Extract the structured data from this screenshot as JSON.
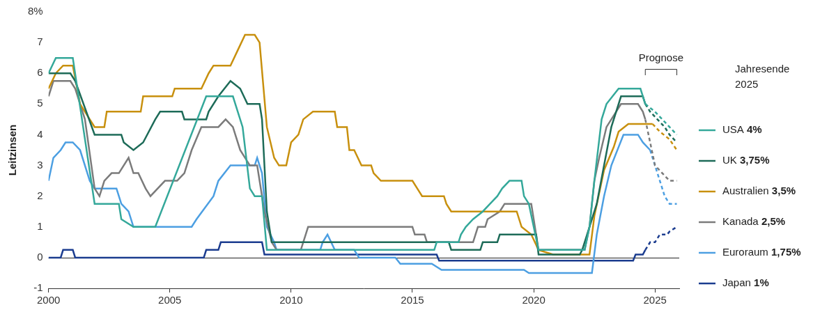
{
  "chart_data": {
    "type": "line",
    "y_label": "Leitzinsen",
    "xlim": [
      2000,
      2026
    ],
    "xticks": [
      2000,
      2005,
      2010,
      2015,
      2020,
      2025
    ],
    "ylim": [
      -1,
      8
    ],
    "yticks": [
      -1,
      0,
      1,
      2,
      3,
      4,
      5,
      6,
      7,
      {
        "value": 8,
        "label": "8%"
      }
    ],
    "grid": false,
    "legend": "right",
    "legend_title": "Jahresende 2025",
    "annotations": [
      {
        "text": "Prognose",
        "x": [
          2024.6,
          2025.9
        ]
      }
    ],
    "series": [
      {
        "name": "USA",
        "year_end_label": "4%",
        "color": "#34a89a",
        "line_style": "solid",
        "x": [
          2000.0,
          2000.3,
          2001.0,
          2001.9,
          2002.9,
          2003.0,
          2003.5,
          2004.4,
          2006.5,
          2007.6,
          2008.0,
          2008.3,
          2008.5,
          2008.8,
          2009.0,
          2015.9,
          2016.0,
          2016.9,
          2017.0,
          2017.2,
          2017.5,
          2017.9,
          2018.2,
          2018.5,
          2018.7,
          2019.0,
          2019.5,
          2019.6,
          2019.8,
          2020.2,
          2022.1,
          2022.3,
          2022.5,
          2022.8,
          2023.0,
          2023.5,
          2024.4,
          2024.6
        ],
        "values": [
          6.0,
          6.5,
          6.5,
          1.75,
          1.75,
          1.25,
          1.0,
          1.0,
          5.25,
          5.25,
          4.25,
          2.25,
          2.0,
          2.0,
          0.25,
          0.25,
          0.5,
          0.5,
          0.75,
          1.0,
          1.25,
          1.5,
          1.75,
          2.0,
          2.25,
          2.5,
          2.5,
          2.0,
          1.75,
          0.25,
          0.25,
          1.0,
          2.5,
          4.5,
          5.0,
          5.5,
          5.5,
          5.0
        ],
        "forecast": {
          "line_style": "dashed",
          "x": [
            2024.6,
            2025.0,
            2025.3,
            2025.6,
            2025.9
          ],
          "values": [
            5.0,
            4.75,
            4.5,
            4.25,
            4.0
          ]
        }
      },
      {
        "name": "UK",
        "year_end_label": "3,75%",
        "color": "#1d6b58",
        "line_style": "solid",
        "x": [
          2000.0,
          2000.9,
          2001.1,
          2001.9,
          2003.0,
          2003.1,
          2003.5,
          2003.9,
          2004.4,
          2004.6,
          2005.5,
          2005.6,
          2006.5,
          2006.6,
          2007.0,
          2007.5,
          2007.9,
          2008.2,
          2008.7,
          2008.8,
          2009.0,
          2009.2,
          2016.5,
          2016.6,
          2017.8,
          2017.9,
          2018.5,
          2018.6,
          2020.1,
          2020.2,
          2021.9,
          2022.0,
          2022.2,
          2022.6,
          2022.9,
          2023.2,
          2023.6,
          2024.5,
          2024.6
        ],
        "values": [
          6.0,
          6.0,
          5.75,
          4.0,
          4.0,
          3.75,
          3.5,
          3.75,
          4.5,
          4.75,
          4.75,
          4.5,
          4.5,
          4.75,
          5.25,
          5.75,
          5.5,
          5.0,
          5.0,
          4.5,
          1.5,
          0.5,
          0.5,
          0.25,
          0.25,
          0.5,
          0.5,
          0.75,
          0.75,
          0.1,
          0.1,
          0.25,
          0.75,
          1.75,
          3.0,
          4.25,
          5.25,
          5.25,
          5.0
        ],
        "forecast": {
          "line_style": "dashed",
          "x": [
            2024.6,
            2024.8,
            2025.1,
            2025.4,
            2025.6,
            2025.9
          ],
          "values": [
            5.0,
            4.75,
            4.5,
            4.25,
            4.0,
            3.75
          ]
        }
      },
      {
        "name": "Australien",
        "year_end_label": "3,5%",
        "color": "#c8900e",
        "line_style": "solid",
        "x": [
          2000.0,
          2000.3,
          2000.6,
          2001.0,
          2001.3,
          2001.9,
          2002.3,
          2002.4,
          2003.8,
          2003.9,
          2005.1,
          2005.2,
          2006.3,
          2006.6,
          2006.8,
          2007.5,
          2007.8,
          2008.1,
          2008.5,
          2008.7,
          2009.0,
          2009.3,
          2009.5,
          2009.8,
          2010.0,
          2010.3,
          2010.5,
          2010.9,
          2011.8,
          2011.9,
          2012.3,
          2012.4,
          2012.6,
          2012.9,
          2013.3,
          2013.4,
          2013.7,
          2015.0,
          2015.2,
          2015.4,
          2016.3,
          2016.4,
          2016.6,
          2019.3,
          2019.5,
          2019.9,
          2020.2,
          2020.8,
          2022.3,
          2022.5,
          2022.9,
          2023.3,
          2023.5,
          2023.9,
          2024.9
        ],
        "values": [
          5.5,
          6.0,
          6.25,
          6.25,
          5.0,
          4.25,
          4.25,
          4.75,
          4.75,
          5.25,
          5.25,
          5.5,
          5.5,
          6.0,
          6.25,
          6.25,
          6.75,
          7.25,
          7.25,
          7.0,
          4.25,
          3.25,
          3.0,
          3.0,
          3.75,
          4.0,
          4.5,
          4.75,
          4.75,
          4.25,
          4.25,
          3.5,
          3.5,
          3.0,
          3.0,
          2.75,
          2.5,
          2.5,
          2.25,
          2.0,
          2.0,
          1.75,
          1.5,
          1.5,
          1.0,
          0.75,
          0.25,
          0.1,
          0.1,
          1.35,
          2.85,
          3.6,
          4.1,
          4.35,
          4.35
        ],
        "forecast": {
          "line_style": "dashed",
          "x": [
            2024.9,
            2025.2,
            2025.6,
            2025.9
          ],
          "values": [
            4.35,
            4.1,
            3.85,
            3.5
          ]
        }
      },
      {
        "name": "Kanada",
        "year_end_label": "2,5%",
        "color": "#7b7b7b",
        "line_style": "solid",
        "x": [
          2000.0,
          2000.2,
          2000.9,
          2001.1,
          2001.5,
          2001.9,
          2002.1,
          2002.3,
          2002.6,
          2002.9,
          2003.3,
          2003.5,
          2003.7,
          2004.0,
          2004.2,
          2004.8,
          2005.3,
          2005.6,
          2005.9,
          2006.3,
          2007.0,
          2007.3,
          2007.6,
          2007.9,
          2008.3,
          2008.6,
          2008.9,
          2009.2,
          2009.4,
          2010.4,
          2010.6,
          2010.7,
          2015.0,
          2015.1,
          2015.5,
          2015.6,
          2017.5,
          2017.6,
          2017.7,
          2018.0,
          2018.1,
          2018.6,
          2018.8,
          2019.9,
          2020.2,
          2022.1,
          2022.3,
          2022.5,
          2022.7,
          2023.0,
          2023.4,
          2023.6,
          2024.3,
          2024.5,
          2024.6
        ],
        "values": [
          5.25,
          5.75,
          5.75,
          5.5,
          4.5,
          2.25,
          2.0,
          2.5,
          2.75,
          2.75,
          3.25,
          2.75,
          2.75,
          2.25,
          2.0,
          2.5,
          2.5,
          2.75,
          3.5,
          4.25,
          4.25,
          4.5,
          4.25,
          3.5,
          3.0,
          3.0,
          1.5,
          0.5,
          0.25,
          0.25,
          0.75,
          1.0,
          1.0,
          0.75,
          0.75,
          0.5,
          0.5,
          0.75,
          1.0,
          1.0,
          1.25,
          1.5,
          1.75,
          1.75,
          0.25,
          0.25,
          1.0,
          2.5,
          3.25,
          4.25,
          4.75,
          5.0,
          5.0,
          4.75,
          4.5
        ],
        "forecast": {
          "line_style": "dashed",
          "x": [
            2024.6,
            2024.8,
            2025.0,
            2025.3,
            2025.6,
            2025.9
          ],
          "values": [
            4.5,
            3.75,
            3.0,
            2.75,
            2.5,
            2.5
          ]
        }
      },
      {
        "name": "Euroraum",
        "year_end_label": "1,75%",
        "color": "#4c9fe2",
        "line_style": "solid",
        "x": [
          2000.0,
          2000.2,
          2000.5,
          2000.7,
          2001.0,
          2001.3,
          2001.7,
          2001.9,
          2002.8,
          2003.0,
          2003.3,
          2003.5,
          2005.9,
          2006.1,
          2006.8,
          2007.0,
          2007.5,
          2008.5,
          2008.6,
          2008.8,
          2009.0,
          2009.3,
          2009.4,
          2011.2,
          2011.3,
          2011.5,
          2011.8,
          2012.6,
          2012.8,
          2014.3,
          2014.5,
          2015.8,
          2016.2,
          2019.6,
          2019.8,
          2022.4,
          2022.6,
          2022.9,
          2023.2,
          2023.7,
          2024.3,
          2024.5,
          2024.8
        ],
        "values": [
          2.5,
          3.25,
          3.5,
          3.75,
          3.75,
          3.5,
          2.5,
          2.25,
          2.25,
          1.75,
          1.5,
          1.0,
          1.0,
          1.25,
          2.0,
          2.5,
          3.0,
          3.0,
          3.25,
          2.75,
          1.0,
          0.5,
          0.25,
          0.25,
          0.5,
          0.75,
          0.25,
          0.25,
          0,
          0,
          -0.2,
          -0.2,
          -0.4,
          -0.4,
          -0.5,
          -0.5,
          0.75,
          2.0,
          3.0,
          4.0,
          4.0,
          3.75,
          3.5
        ],
        "forecast": {
          "line_style": "dashed",
          "x": [
            2024.8,
            2025.0,
            2025.2,
            2025.4,
            2025.6,
            2025.9
          ],
          "values": [
            3.5,
            3.0,
            2.5,
            2.0,
            1.75,
            1.75
          ]
        }
      },
      {
        "name": "Japan",
        "year_end_label": "1%",
        "color": "#1b3c8f",
        "line_style": "solid",
        "x": [
          2000.0,
          2000.5,
          2000.6,
          2001.0,
          2001.1,
          2006.4,
          2006.5,
          2007.0,
          2007.1,
          2008.8,
          2008.9,
          2016.0,
          2016.1,
          2024.1,
          2024.2,
          2024.5,
          2024.6
        ],
        "values": [
          0,
          0,
          0.25,
          0.25,
          0,
          0,
          0.25,
          0.25,
          0.5,
          0.5,
          0.1,
          0.1,
          -0.1,
          -0.1,
          0.1,
          0.1,
          0.25
        ],
        "forecast": {
          "line_style": "dashed",
          "x": [
            2024.6,
            2024.8,
            2025.0,
            2025.2,
            2025.5,
            2025.6,
            2025.9
          ],
          "values": [
            0.25,
            0.5,
            0.5,
            0.75,
            0.75,
            0.85,
            1.0
          ]
        }
      }
    ]
  }
}
